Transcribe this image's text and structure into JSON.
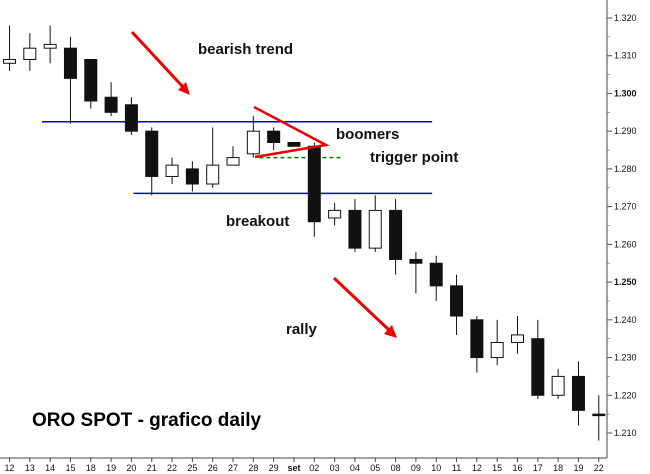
{
  "chart_data": {
    "type": "candlestick",
    "title": "ORO SPOT - grafico daily",
    "y_axis": {
      "side": "right",
      "min": 1.205,
      "max": 1.325,
      "ticks": [
        "1.320",
        "1.310",
        "1.300",
        "1.290",
        "1.280",
        "1.270",
        "1.260",
        "1.250",
        "1.240",
        "1.230",
        "1.220",
        "1.210"
      ],
      "bold_ticks": [
        "1.300",
        "1.250"
      ]
    },
    "x_axis": {
      "labels": [
        "12",
        "13",
        "14",
        "15",
        "18",
        "19",
        "20",
        "21",
        "22",
        "25",
        "26",
        "27",
        "28",
        "29",
        "set",
        "02",
        "03",
        "04",
        "05",
        "08",
        "09",
        "10",
        "11",
        "12",
        "15",
        "16",
        "17",
        "18",
        "19",
        "22"
      ]
    },
    "candles": [
      {
        "o": 1.308,
        "h": 1.318,
        "l": 1.306,
        "c": 1.309
      },
      {
        "o": 1.309,
        "h": 1.316,
        "l": 1.306,
        "c": 1.312
      },
      {
        "o": 1.312,
        "h": 1.318,
        "l": 1.308,
        "c": 1.313
      },
      {
        "o": 1.312,
        "h": 1.315,
        "l": 1.292,
        "c": 1.304
      },
      {
        "o": 1.309,
        "h": 1.309,
        "l": 1.296,
        "c": 1.298
      },
      {
        "o": 1.299,
        "h": 1.303,
        "l": 1.294,
        "c": 1.295
      },
      {
        "o": 1.297,
        "h": 1.299,
        "l": 1.289,
        "c": 1.29
      },
      {
        "o": 1.29,
        "h": 1.291,
        "l": 1.273,
        "c": 1.278
      },
      {
        "o": 1.278,
        "h": 1.283,
        "l": 1.276,
        "c": 1.281
      },
      {
        "o": 1.28,
        "h": 1.282,
        "l": 1.274,
        "c": 1.276
      },
      {
        "o": 1.276,
        "h": 1.291,
        "l": 1.275,
        "c": 1.281
      },
      {
        "o": 1.281,
        "h": 1.286,
        "l": 1.281,
        "c": 1.283
      },
      {
        "o": 1.284,
        "h": 1.294,
        "l": 1.283,
        "c": 1.29
      },
      {
        "o": 1.29,
        "h": 1.291,
        "l": 1.285,
        "c": 1.287
      },
      {
        "o": 1.287,
        "h": 1.287,
        "l": 1.286,
        "c": 1.286
      },
      {
        "o": 1.286,
        "h": 1.287,
        "l": 1.262,
        "c": 1.266
      },
      {
        "o": 1.267,
        "h": 1.271,
        "l": 1.265,
        "c": 1.269
      },
      {
        "o": 1.269,
        "h": 1.272,
        "l": 1.258,
        "c": 1.259
      },
      {
        "o": 1.259,
        "h": 1.273,
        "l": 1.258,
        "c": 1.269
      },
      {
        "o": 1.269,
        "h": 1.272,
        "l": 1.252,
        "c": 1.256
      },
      {
        "o": 1.256,
        "h": 1.258,
        "l": 1.247,
        "c": 1.255
      },
      {
        "o": 1.255,
        "h": 1.257,
        "l": 1.245,
        "c": 1.249
      },
      {
        "o": 1.249,
        "h": 1.252,
        "l": 1.236,
        "c": 1.241
      },
      {
        "o": 1.24,
        "h": 1.241,
        "l": 1.226,
        "c": 1.23
      },
      {
        "o": 1.23,
        "h": 1.24,
        "l": 1.228,
        "c": 1.234
      },
      {
        "o": 1.234,
        "h": 1.241,
        "l": 1.231,
        "c": 1.236
      },
      {
        "o": 1.235,
        "h": 1.24,
        "l": 1.219,
        "c": 1.22
      },
      {
        "o": 1.22,
        "h": 1.227,
        "l": 1.219,
        "c": 1.225
      },
      {
        "o": 1.225,
        "h": 1.229,
        "l": 1.212,
        "c": 1.216
      },
      {
        "o": 1.215,
        "h": 1.22,
        "l": 1.208,
        "c": 1.215
      }
    ],
    "lines": [
      {
        "kind": "horizontal",
        "y": 1.2925,
        "from": 1.6,
        "to": 20.8,
        "color": "#0000cc"
      },
      {
        "kind": "horizontal",
        "y": 1.2735,
        "from": 6.1,
        "to": 20.8,
        "color": "#0000cc"
      },
      {
        "kind": "dotted",
        "y": 1.283,
        "from": 12.3,
        "to": 16.4,
        "color": "#007700"
      }
    ],
    "annotations": {
      "bearish_trend": "bearish trend",
      "boomers": "boomers",
      "trigger_point": "trigger point",
      "breakout": "breakout",
      "rally": "rally"
    },
    "colors": {
      "bear": "#111111",
      "bull": "#ffffff",
      "arrow": "#ee0000",
      "support": "#0000cc",
      "trigger": "#007700"
    }
  }
}
